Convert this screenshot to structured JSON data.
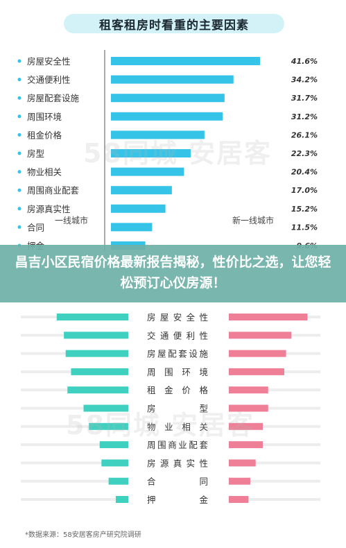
{
  "chart_data": [
    {
      "type": "bar",
      "orientation": "horizontal",
      "title": "租客租房时看重的主要因素",
      "categories": [
        "房屋安全性",
        "交通便利性",
        "房屋配套设施",
        "周围环境",
        "租金价格",
        "房型",
        "物业相关",
        "周围商业配套",
        "房源真实性",
        "合同",
        "押金"
      ],
      "values": [
        41.6,
        34.2,
        31.7,
        31.2,
        26.1,
        22.3,
        20.4,
        17.0,
        15.2,
        11.5,
        9.6
      ],
      "value_labels": [
        "41.6%",
        "34.2%",
        "31.7%",
        "31.2%",
        "26.1%",
        "22.3%",
        "20.4%",
        "17.0%",
        "15.2%",
        "11.5%",
        "9.6%"
      ],
      "xlim": [
        0,
        45
      ],
      "color": "#35c3e8"
    },
    {
      "type": "bar",
      "orientation": "horizontal",
      "layout": "butterfly",
      "categories": [
        "房屋安全性",
        "交通便利性",
        "房屋配套设施",
        "周围环境",
        "租金价格",
        "房型",
        "物业相关",
        "周围商业配套",
        "房源真实性",
        "合同",
        "押金"
      ],
      "series": [
        {
          "name": "一线城市",
          "values": [
            40,
            36,
            35,
            32,
            34,
            25,
            22,
            16,
            15,
            11,
            7
          ],
          "color": "#3fd0c0"
        },
        {
          "name": "新一线城市",
          "values": [
            44,
            35,
            32,
            31,
            22,
            22,
            19,
            19,
            15,
            12,
            11
          ],
          "color": "#ef7f97"
        }
      ],
      "xlim": [
        0,
        50
      ]
    }
  ],
  "watermark": "58同城 安居客",
  "overlay_text": "昌吉小区民宿价格最新报告揭秘，性价比之选，让您轻松预订心仪房源！",
  "source": "*数据来源：58安居客房产研究院调研"
}
